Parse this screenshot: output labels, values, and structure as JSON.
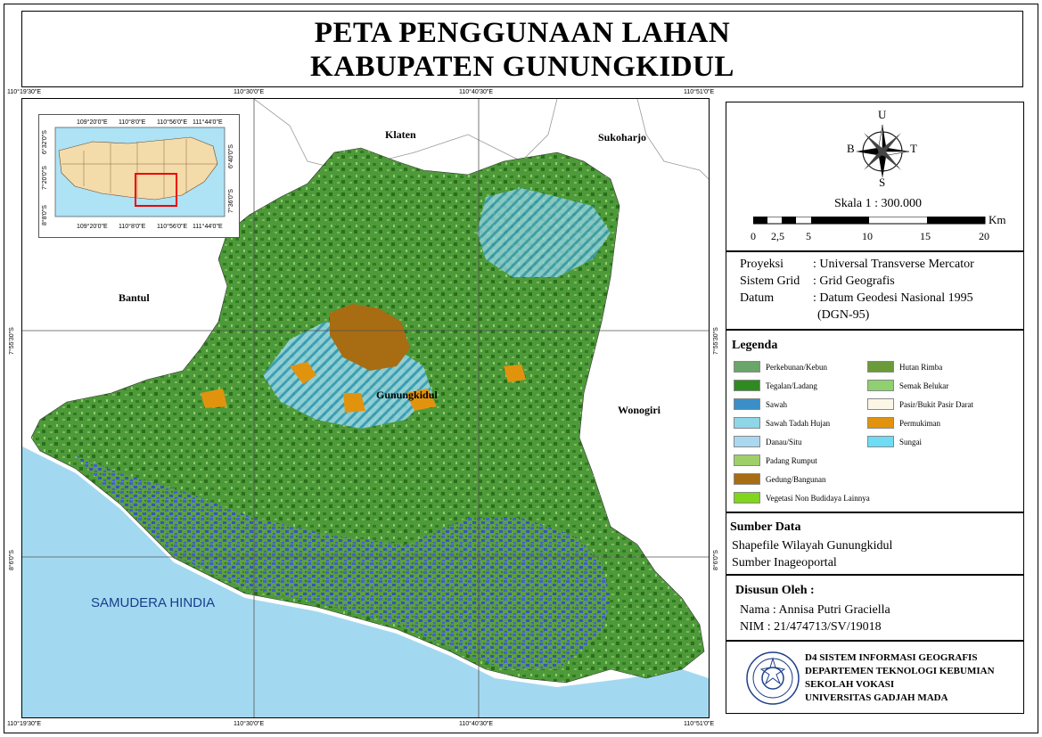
{
  "title": {
    "line1": "PETA PENGGUNAAN LAHAN",
    "line2": "KABUPATEN GUNUNGKIDUL"
  },
  "map": {
    "coords_top": [
      "110°19'30\"E",
      "110°30'0\"E",
      "110°40'30\"E",
      "110°51'0\"E"
    ],
    "coords_bottom": [
      "110°19'30\"E",
      "110°30'0\"E",
      "110°40'30\"E",
      "110°51'0\"E"
    ],
    "coords_left": [
      "7°55'30\"S",
      "8°6'0\"S"
    ],
    "coords_right": [
      "7°55'30\"S",
      "8°6'0\"S"
    ],
    "places": {
      "klaten": "Klaten",
      "sukoharjo": "Sukoharjo",
      "bantul": "Bantul",
      "gunungkidul": "Gunungkidul",
      "wonogiri": "Wonogiri"
    },
    "sea": "SAMUDERA HINDIA",
    "colors": {
      "sea": "#a3d9f0",
      "land_main": "#5b9a45",
      "tegalan": "#2e7d1f",
      "sawah": "#3b5fd6",
      "settlement": "#d68a12",
      "building": "#a86c12"
    }
  },
  "inset": {
    "top_labels": [
      "109°20'0\"E",
      "110°8'0\"E",
      "110°56'0\"E",
      "111°44'0\"E"
    ],
    "bottom_labels": [
      "109°20'0\"E",
      "110°8'0\"E",
      "110°56'0\"E",
      "111°44'0\"E"
    ],
    "left_labels": [
      "6°32'0\"S",
      "7°20'0\"S",
      "8°8'0\"S"
    ],
    "right_labels": [
      "6°40'0\"S",
      "7°36'0\"S"
    ]
  },
  "compass": {
    "n": "U",
    "s": "S",
    "e": "T",
    "w": "B"
  },
  "scale": {
    "text": "Skala 1 : 300.000",
    "unit": "Km",
    "ticks": [
      "0",
      "2,5",
      "5",
      "10",
      "15",
      "20"
    ]
  },
  "projection": {
    "proyeksi_label": "Proyeksi",
    "proyeksi_value": ": Universal Transverse Mercator",
    "grid_label": "Sistem Grid",
    "grid_value": ": Grid Geografis",
    "datum_label": "Datum",
    "datum_value": ": Datum Geodesi Nasional 1995",
    "datum_value2": "(DGN-95)"
  },
  "legend": {
    "title": "Legenda",
    "items": [
      {
        "label": "Perkebunan/Kebun",
        "color": "#6aa56a"
      },
      {
        "label": "Tegalan/Ladang",
        "color": "#2f8a1f"
      },
      {
        "label": "Sawah",
        "color": "#3b8fc8"
      },
      {
        "label": "Sawah Tadah Hujan",
        "color": "#8fd6e8"
      },
      {
        "label": "Danau/Situ",
        "color": "#a9d8f0"
      },
      {
        "label": "Padang Rumput",
        "color": "#9fcf6a"
      },
      {
        "label": "Gedung/Bangunan",
        "color": "#a86c12"
      },
      {
        "label": "Vegetasi Non Budidaya Lainnya",
        "color": "#7fd61a"
      },
      {
        "label": "Hutan Rimba",
        "color": "#6a9a3a"
      },
      {
        "label": "Semak Belukar",
        "color": "#8fd070"
      },
      {
        "label": "Pasir/Bukit Pasir Darat",
        "color": "#fbf6e6"
      },
      {
        "label": "Permukiman",
        "color": "#e2930e"
      },
      {
        "label": "Sungai",
        "color": "#6fdcf5"
      }
    ]
  },
  "sumber": {
    "title": "Sumber Data",
    "line1": "Shapefile Wilayah Gunungkidul",
    "line2": "Sumber Inageoportal"
  },
  "disusun": {
    "title": "Disusun Oleh :",
    "nama": "Nama : Annisa Putri Graciella",
    "nim": "NIM : 21/474713/SV/19018"
  },
  "institution": {
    "line1": "D4 SISTEM INFORMASI GEOGRAFIS",
    "line2": "DEPARTEMEN TEKNOLOGI KEBUMIAN",
    "line3": "SEKOLAH VOKASI",
    "line4": "UNIVERSITAS GADJAH MADA"
  }
}
